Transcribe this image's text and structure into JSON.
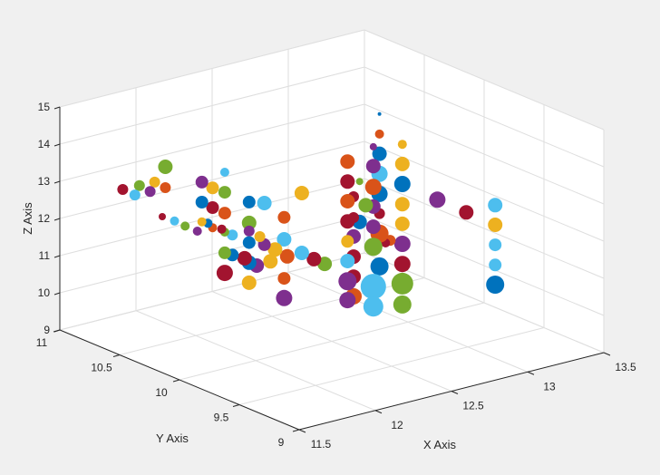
{
  "chart_data": {
    "type": "scatter3",
    "title": "",
    "xlabel": "X Axis",
    "ylabel": "Y Axis",
    "zlabel": "Z Axis",
    "xlim": [
      11.5,
      13.5
    ],
    "ylim": [
      9,
      11
    ],
    "zlim": [
      9,
      15
    ],
    "grid": true,
    "xticks": [
      "11.5",
      "12",
      "12.5",
      "13",
      "13.5"
    ],
    "yticks": [
      "9",
      "9.5",
      "10",
      "10.5",
      "11"
    ],
    "zticks": [
      "9",
      "10",
      "11",
      "12",
      "13",
      "14",
      "15"
    ],
    "palette": [
      "#0072BD",
      "#D95319",
      "#EDB120",
      "#7E2F8E",
      "#77AC30",
      "#4DBEEE",
      "#A2142F"
    ],
    "point_fields": [
      "x",
      "y",
      "z",
      "size",
      "color_index"
    ],
    "points": [
      [
        11.52,
        10.5,
        13.43,
        6,
        6
      ],
      [
        11.6,
        10.5,
        13.2,
        6,
        5
      ],
      [
        11.63,
        10.5,
        13.42,
        6,
        4
      ],
      [
        11.7,
        10.5,
        13.19,
        6,
        3
      ],
      [
        11.73,
        10.5,
        13.41,
        6,
        2
      ],
      [
        11.8,
        10.5,
        13.19,
        6,
        1
      ],
      [
        11.8,
        10.5,
        13.75,
        8,
        4
      ],
      [
        12.04,
        10.5,
        13.09,
        7,
        3
      ],
      [
        12.11,
        10.5,
        12.86,
        7,
        2
      ],
      [
        12.19,
        10.5,
        12.66,
        7,
        4
      ],
      [
        12.19,
        10.5,
        13.2,
        5,
        5
      ],
      [
        11.78,
        10.5,
        12.43,
        4,
        6
      ],
      [
        11.86,
        10.5,
        12.23,
        5,
        5
      ],
      [
        11.93,
        10.5,
        12.02,
        5,
        4
      ],
      [
        12.01,
        10.5,
        11.8,
        5,
        3
      ],
      [
        12.04,
        10.5,
        12.02,
        5,
        2
      ],
      [
        12.08,
        10.5,
        11.94,
        5,
        0
      ],
      [
        12.11,
        10.5,
        11.79,
        5,
        1
      ],
      [
        12.17,
        10.5,
        11.69,
        5,
        6
      ],
      [
        12.19,
        10.5,
        11.59,
        5,
        4
      ],
      [
        12.24,
        10.5,
        11.46,
        6,
        5
      ],
      [
        12.04,
        10.5,
        12.55,
        7,
        0
      ],
      [
        12.11,
        10.5,
        12.33,
        7,
        6
      ],
      [
        12.19,
        10.5,
        12.1,
        7,
        1
      ],
      [
        12.35,
        10.5,
        12.23,
        7,
        0
      ],
      [
        12.45,
        10.5,
        12.1,
        8,
        5
      ],
      [
        12.35,
        10.5,
        11.67,
        8,
        4
      ],
      [
        12.58,
        10.5,
        11.58,
        7,
        1
      ],
      [
        12.35,
        10.5,
        11.45,
        6,
        3
      ],
      [
        12.42,
        10.5,
        11.23,
        6,
        2
      ],
      [
        12.19,
        10.5,
        11.03,
        7,
        4
      ],
      [
        12.24,
        10.5,
        10.92,
        7,
        0
      ],
      [
        12.19,
        10.5,
        10.49,
        9,
        6
      ],
      [
        12.32,
        10.5,
        10.75,
        8,
        6
      ],
      [
        12.35,
        10.5,
        11.14,
        7,
        0
      ],
      [
        12.35,
        10.5,
        10.6,
        8,
        0
      ],
      [
        12.4,
        10.5,
        10.47,
        8,
        3
      ],
      [
        12.45,
        10.5,
        10.98,
        7,
        3
      ],
      [
        12.49,
        10.5,
        10.49,
        8,
        2
      ],
      [
        12.52,
        10.5,
        10.78,
        8,
        2
      ],
      [
        12.58,
        10.5,
        10.99,
        8,
        5
      ],
      [
        12.6,
        10.5,
        10.51,
        8,
        1
      ],
      [
        12.58,
        10.5,
        9.94,
        7,
        1
      ],
      [
        12.35,
        10.5,
        10.06,
        8,
        2
      ],
      [
        12.58,
        10.5,
        9.41,
        9,
        3
      ],
      [
        12.46,
        10.2,
        12.76,
        8,
        2
      ],
      [
        12.46,
        10.2,
        11.15,
        8,
        5
      ],
      [
        12.54,
        10.2,
        10.9,
        8,
        6
      ],
      [
        12.61,
        10.2,
        10.7,
        8,
        4
      ],
      [
        12.76,
        10.2,
        13.3,
        8,
        1
      ],
      [
        12.76,
        10.2,
        12.76,
        8,
        6
      ],
      [
        12.76,
        10.2,
        12.23,
        8,
        1
      ],
      [
        12.76,
        10.2,
        11.69,
        8,
        6
      ],
      [
        12.76,
        10.2,
        11.15,
        7,
        2
      ],
      [
        12.76,
        10.2,
        10.62,
        8,
        5
      ],
      [
        12.76,
        10.2,
        10.08,
        10,
        3
      ],
      [
        12.76,
        10.2,
        9.57,
        9,
        3
      ],
      [
        12.8,
        10.2,
        12.31,
        6,
        6
      ],
      [
        12.8,
        10.2,
        11.75,
        6,
        6
      ],
      [
        12.8,
        10.2,
        11.24,
        8,
        3
      ],
      [
        12.8,
        10.2,
        10.7,
        8,
        6
      ],
      [
        12.8,
        10.2,
        10.16,
        8,
        6
      ],
      [
        12.8,
        10.2,
        9.63,
        9,
        1
      ],
      [
        12.84,
        10.2,
        12.68,
        4,
        4
      ],
      [
        12.84,
        10.2,
        11.59,
        8,
        0
      ],
      [
        12.88,
        10.2,
        12.0,
        8,
        4
      ],
      [
        12.93,
        10.2,
        13.52,
        4,
        3
      ],
      [
        12.93,
        10.2,
        13.0,
        8,
        3
      ],
      [
        12.93,
        10.2,
        12.44,
        9,
        1
      ],
      [
        12.93,
        10.2,
        11.91,
        8,
        3
      ],
      [
        12.93,
        10.2,
        11.37,
        8,
        3
      ],
      [
        12.93,
        10.2,
        10.83,
        10,
        4
      ],
      [
        12.93,
        10.2,
        9.76,
        14,
        5
      ],
      [
        12.93,
        10.2,
        9.22,
        11,
        5
      ],
      [
        12.97,
        10.2,
        14.36,
        2,
        0
      ],
      [
        12.97,
        10.2,
        13.82,
        5,
        1
      ],
      [
        12.97,
        10.2,
        13.29,
        8,
        0
      ],
      [
        12.97,
        10.2,
        12.75,
        9,
        5
      ],
      [
        12.97,
        10.2,
        12.21,
        9,
        0
      ],
      [
        12.97,
        10.2,
        11.68,
        6,
        6
      ],
      [
        12.97,
        10.2,
        11.14,
        10,
        1
      ],
      [
        12.97,
        10.2,
        10.26,
        10,
        0
      ],
      [
        13.01,
        10.2,
        10.85,
        5,
        6
      ],
      [
        13.04,
        10.2,
        10.89,
        6,
        1
      ],
      [
        13.12,
        10.2,
        13.39,
        5,
        2
      ],
      [
        13.12,
        10.2,
        12.86,
        8,
        2
      ],
      [
        13.12,
        10.2,
        12.32,
        9,
        0
      ],
      [
        13.12,
        10.2,
        11.78,
        8,
        2
      ],
      [
        13.12,
        10.2,
        11.25,
        8,
        2
      ],
      [
        13.12,
        10.2,
        10.71,
        9,
        3
      ],
      [
        13.12,
        10.2,
        10.17,
        9,
        6
      ],
      [
        13.12,
        10.2,
        9.64,
        12,
        4
      ],
      [
        13.12,
        10.2,
        9.08,
        10,
        4
      ],
      [
        12.8,
        9.5,
        13.17,
        9,
        3
      ],
      [
        12.99,
        9.5,
        12.63,
        8,
        6
      ],
      [
        13.18,
        9.5,
        12.63,
        8,
        5
      ],
      [
        13.18,
        9.5,
        12.1,
        8,
        2
      ],
      [
        13.18,
        9.5,
        11.56,
        7,
        5
      ],
      [
        13.18,
        9.5,
        11.02,
        7,
        5
      ],
      [
        13.18,
        9.5,
        10.49,
        10,
        0
      ]
    ]
  }
}
